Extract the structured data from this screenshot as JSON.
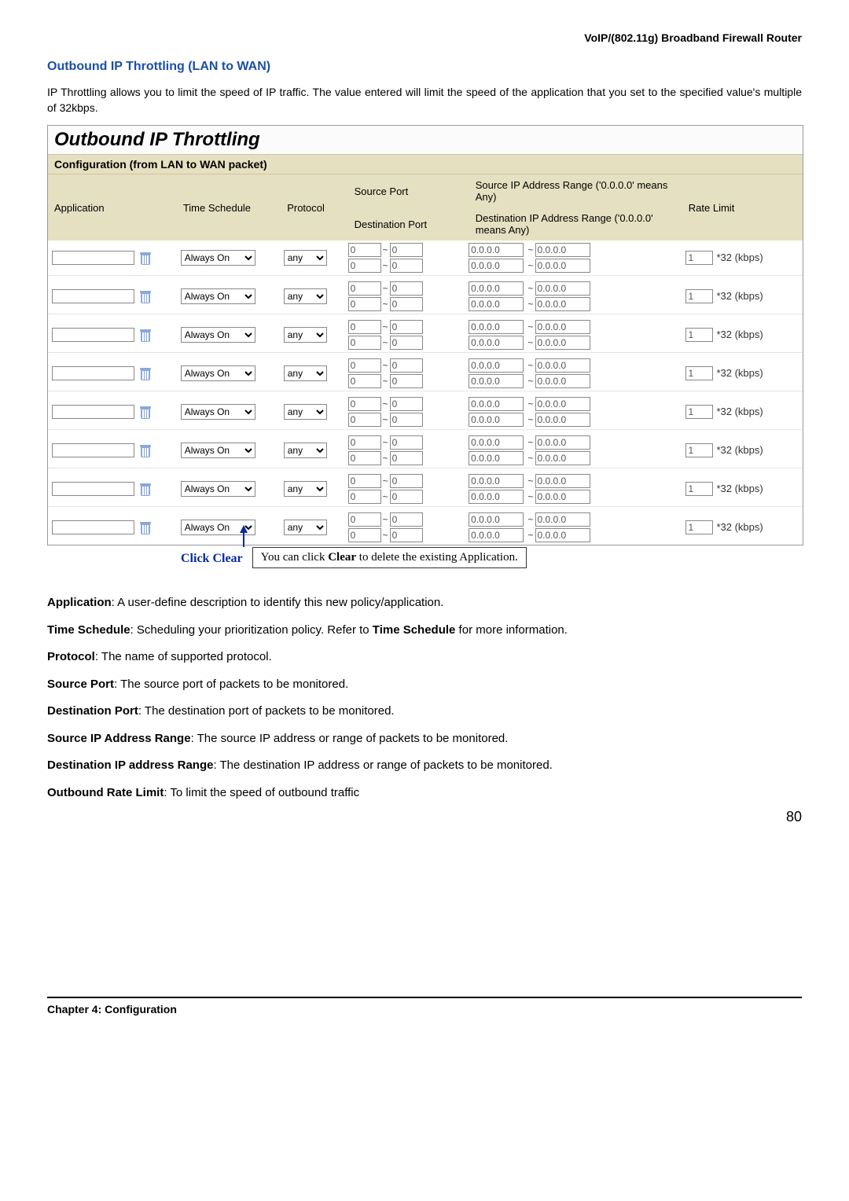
{
  "header_right": "VoIP/(802.11g)  Broadband  Firewall  Router",
  "section_title": "Outbound IP Throttling (LAN to WAN)",
  "intro": "IP Throttling allows you to limit the speed of IP traffic. The value entered will limit the speed of the application that you set to the specified value's multiple of 32kbps.",
  "panel": {
    "title": "Outbound IP Throttling",
    "subtitle": "Configuration (from LAN to WAN packet)",
    "columns": {
      "application": "Application",
      "time_schedule": "Time Schedule",
      "protocol": "Protocol",
      "source_port": "Source Port",
      "dest_port": "Destination Port",
      "source_ip": "Source IP Address Range ('0.0.0.0' means Any)",
      "dest_ip": "Destination IP Address Range ('0.0.0.0' means Any)",
      "rate": "Rate Limit"
    },
    "row_defaults": {
      "time_schedule": "Always On",
      "protocol": "any",
      "port_from": "0",
      "port_to": "0",
      "ip_from": "0.0.0.0",
      "ip_to": "0.0.0.0",
      "rate_value": "1",
      "rate_unit": "*32 (kbps)"
    },
    "row_count": 8
  },
  "callout": {
    "label": "Click Clear",
    "text_pre": "You can click ",
    "text_bold": "Clear",
    "text_post": " to delete the existing Application."
  },
  "definitions": [
    {
      "term": "Application",
      "desc": ": A user-define description to identify this new policy/application."
    },
    {
      "term": "Time Schedule",
      "desc": ": Scheduling your prioritization policy. Refer to ",
      "bold2": "Time Schedule",
      "desc2": " for more information."
    },
    {
      "term": "Protocol",
      "desc": ": The name of supported protocol."
    },
    {
      "term": "Source Port",
      "desc": ": The source port of packets to be monitored."
    },
    {
      "term": "Destination Port",
      "desc": ": The destination port of packets to be monitored."
    },
    {
      "term": "Source IP Address Range",
      "desc": ": The source IP address or range of packets to be monitored."
    },
    {
      "term": "Destination IP address Range",
      "desc": ": The destination IP address or range of packets to be monitored."
    },
    {
      "term": "Outbound Rate Limit",
      "desc": ": To limit the speed of outbound traffic"
    }
  ],
  "footer": {
    "page": "80",
    "chapter": "Chapter 4: Configuration"
  }
}
